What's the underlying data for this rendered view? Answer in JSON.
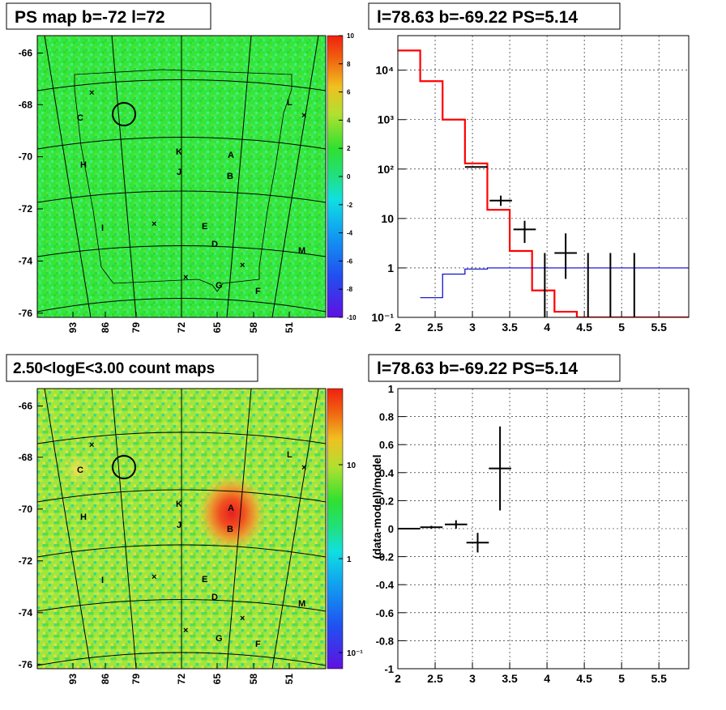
{
  "panels": {
    "ps_map": {
      "title": "PS map b=-72 l=72",
      "y_ticks": [
        "-66",
        "-68",
        "-70",
        "-72",
        "-74",
        "-76"
      ],
      "x_ticks": [
        "93",
        "86",
        "79",
        "72",
        "65",
        "58",
        "51"
      ],
      "colorbar_ticks": [
        "10",
        "8",
        "6",
        "4",
        "2",
        "0",
        "-2",
        "-4",
        "-6",
        "-8",
        "-10"
      ],
      "region_labels": [
        "C",
        "H",
        "I",
        "K",
        "J",
        "A",
        "B",
        "E",
        "D",
        "G",
        "F",
        "L",
        "M"
      ]
    },
    "count_map": {
      "title": "2.50<logE<3.00 count maps",
      "y_ticks": [
        "-66",
        "-68",
        "-70",
        "-72",
        "-74",
        "-76"
      ],
      "x_ticks": [
        "93",
        "86",
        "79",
        "72",
        "65",
        "58",
        "51"
      ],
      "colorbar_ticks": [
        "10",
        "1",
        "10⁻¹"
      ],
      "region_labels": [
        "C",
        "H",
        "I",
        "K",
        "J",
        "A",
        "B",
        "E",
        "D",
        "G",
        "F",
        "L",
        "M"
      ]
    },
    "spectrum": {
      "title": "l=78.63 b=-69.22 PS=5.14"
    },
    "residual": {
      "title": "l=78.63 b=-69.22 PS=5.14"
    }
  },
  "chart_data": [
    {
      "type": "heatmap",
      "title": "PS map b=-72 l=72",
      "ylabel": "",
      "xlabel": "",
      "y_ticks": [
        -66,
        -68,
        -70,
        -72,
        -74,
        -76
      ],
      "x_ticks": [
        93,
        86,
        79,
        72,
        65,
        58,
        51
      ],
      "colorbar_range": [
        -10,
        10
      ],
      "colors": {
        "dominant": "#35e63a"
      }
    },
    {
      "type": "heatmap",
      "title": "2.50<logE<3.00 count maps",
      "y_ticks": [
        -66,
        -68,
        -70,
        -72,
        -74,
        -76
      ],
      "x_ticks": [
        93,
        86,
        79,
        72,
        65,
        58,
        51
      ],
      "colorbar_scale": "log",
      "colorbar_ticks": [
        "10",
        "1",
        "10⁻¹"
      ],
      "hotspot_label": "A"
    },
    {
      "type": "line",
      "title": "l=78.63 b=-69.22 PS=5.14",
      "xlim": [
        2,
        5.9
      ],
      "ylim": [
        0.1,
        50000
      ],
      "yscale": "log",
      "x_ticks": [
        2,
        2.5,
        3,
        3.5,
        4,
        4.5,
        5,
        5.5
      ],
      "y_ticks": [
        "10⁻¹",
        "1",
        "10",
        "10²",
        "10³",
        "10⁴"
      ],
      "series": [
        {
          "color": "#ff0000",
          "steps": [
            [
              2.0,
              2.3,
              25000
            ],
            [
              2.3,
              2.6,
              6000
            ],
            [
              2.6,
              2.9,
              1000
            ],
            [
              2.9,
              3.2,
              130
            ],
            [
              3.2,
              3.5,
              15
            ],
            [
              3.5,
              3.8,
              2.2
            ],
            [
              3.8,
              4.1,
              0.35
            ],
            [
              4.1,
              4.4,
              0.13
            ],
            [
              4.4,
              5.9,
              0.1
            ]
          ]
        },
        {
          "color": "#0000cc",
          "steps": [
            [
              2.3,
              2.6,
              0.25
            ],
            [
              2.6,
              2.9,
              0.75
            ],
            [
              2.9,
              3.2,
              0.95
            ],
            [
              3.2,
              5.9,
              1.0
            ]
          ]
        }
      ],
      "points": [
        {
          "x": 3.05,
          "xerr": 0.15,
          "y": 110,
          "ylo": 110,
          "yhi": 110
        },
        {
          "x": 3.38,
          "xerr": 0.15,
          "y": 23,
          "ylo": 18,
          "yhi": 29
        },
        {
          "x": 3.7,
          "xerr": 0.15,
          "y": 6,
          "ylo": 3.2,
          "yhi": 9
        },
        {
          "x": 3.97,
          "xerr": 0,
          "y": 0.1,
          "ylo": 0.1,
          "yhi": 2
        },
        {
          "x": 4.25,
          "xerr": 0.15,
          "y": 2,
          "ylo": 0.6,
          "yhi": 5
        },
        {
          "x": 4.55,
          "xerr": 0,
          "y": 0.1,
          "ylo": 0.1,
          "yhi": 2
        },
        {
          "x": 4.85,
          "xerr": 0,
          "y": 0.1,
          "ylo": 0.1,
          "yhi": 2
        },
        {
          "x": 5.17,
          "xerr": 0,
          "y": 0.1,
          "ylo": 0.1,
          "yhi": 2
        }
      ],
      "grid": true
    },
    {
      "type": "scatter",
      "title": "l=78.63 b=-69.22 PS=5.14",
      "ylabel": "(data-model)/model",
      "xlim": [
        2,
        5.9
      ],
      "ylim": [
        -1,
        1
      ],
      "x_ticks": [
        2,
        2.5,
        3,
        3.5,
        4,
        4.5,
        5,
        5.5
      ],
      "y_ticks": [
        1,
        0.8,
        0.6,
        0.4,
        0.2,
        0,
        -0.2,
        -0.4,
        -0.6,
        -0.8,
        -1
      ],
      "points": [
        {
          "x": 2.15,
          "xerr": 0.15,
          "y": 0.0,
          "yerr": 0.0
        },
        {
          "x": 2.45,
          "xerr": 0.15,
          "y": 0.01,
          "yerr": 0.01
        },
        {
          "x": 2.78,
          "xerr": 0.15,
          "y": 0.03,
          "yerr": 0.03
        },
        {
          "x": 3.07,
          "xerr": 0.15,
          "y": -0.1,
          "yerr": 0.07
        },
        {
          "x": 3.37,
          "xerr": 0.15,
          "y": 0.43,
          "yerr": 0.3
        }
      ],
      "grid": true
    }
  ]
}
